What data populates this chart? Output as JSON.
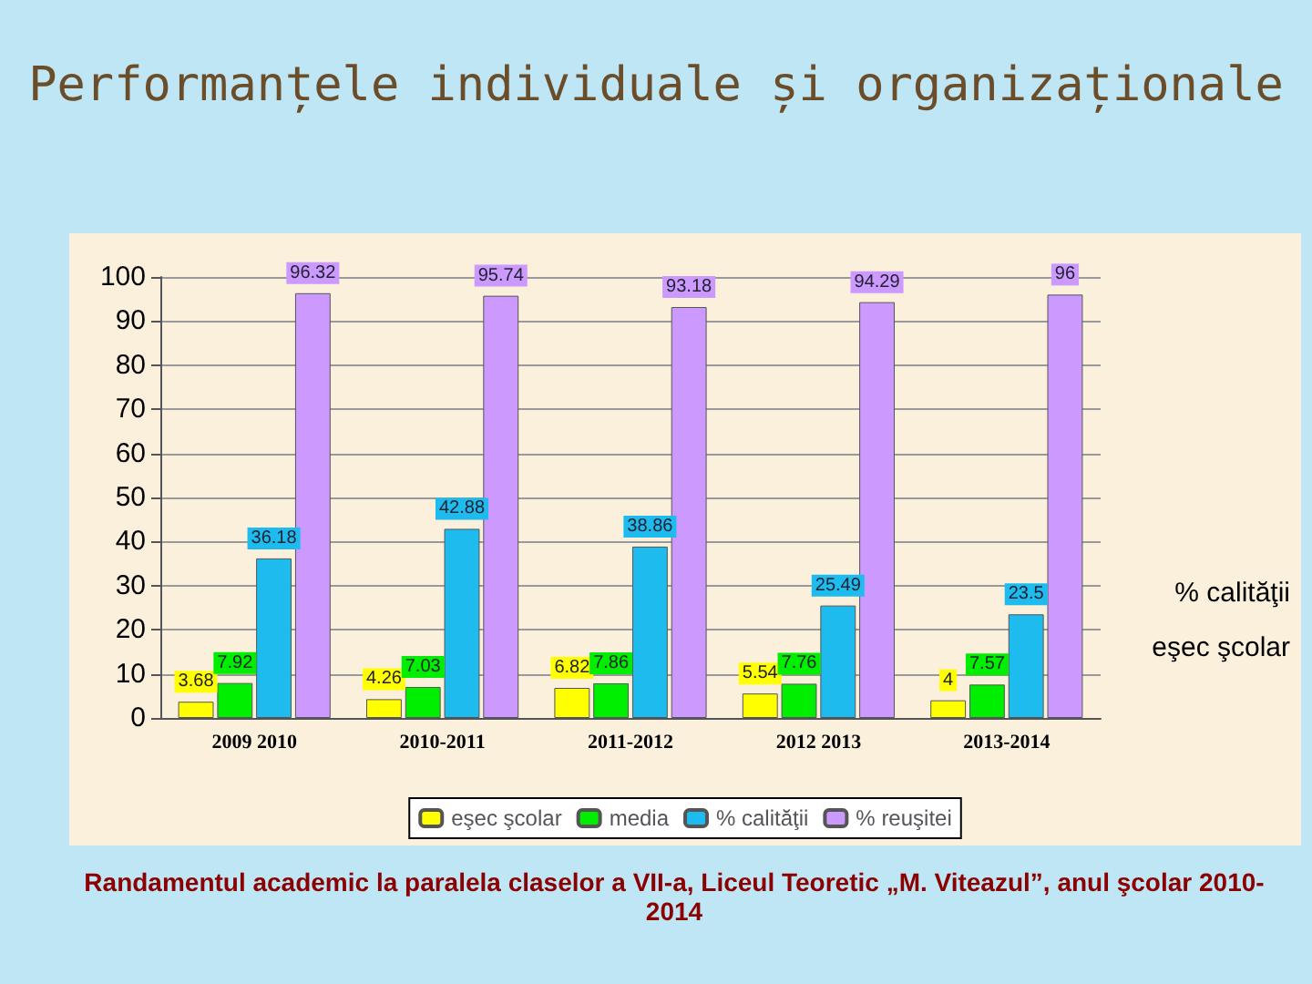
{
  "chart_data": {
    "type": "bar",
    "title": "Performanțele individuale și organizaționale",
    "categories": [
      "2009 2010",
      "2010-2011",
      "2011-2012",
      "2012 2013",
      "2013-2014"
    ],
    "series": [
      {
        "name": "eşec şcolar",
        "color": "#ffff00",
        "values": [
          3.68,
          4.26,
          6.82,
          5.54,
          4
        ]
      },
      {
        "name": "media",
        "color": "#00ee00",
        "values": [
          7.92,
          7.03,
          7.86,
          7.76,
          7.57
        ]
      },
      {
        "name": "% calităţii",
        "color": "#1ebcee",
        "values": [
          36.18,
          42.88,
          38.86,
          25.49,
          23.5
        ]
      },
      {
        "name": "% reuşitei",
        "color": "#cc99ff",
        "values": [
          96.32,
          95.74,
          93.18,
          94.29,
          96
        ]
      }
    ],
    "ylim": [
      0,
      100
    ],
    "yticks": [
      0,
      10,
      20,
      30,
      40,
      50,
      60,
      70,
      80,
      90,
      100
    ],
    "grid": "y",
    "legend": "bottom",
    "data_labels": true,
    "annotations": [
      "% calităţii",
      "eşec şcolar",
      "Randamentul academic la paralela claselor a VII-a, Liceul Teoretic  „M. Viteazul”, anul şcolar 2010-2014"
    ]
  }
}
